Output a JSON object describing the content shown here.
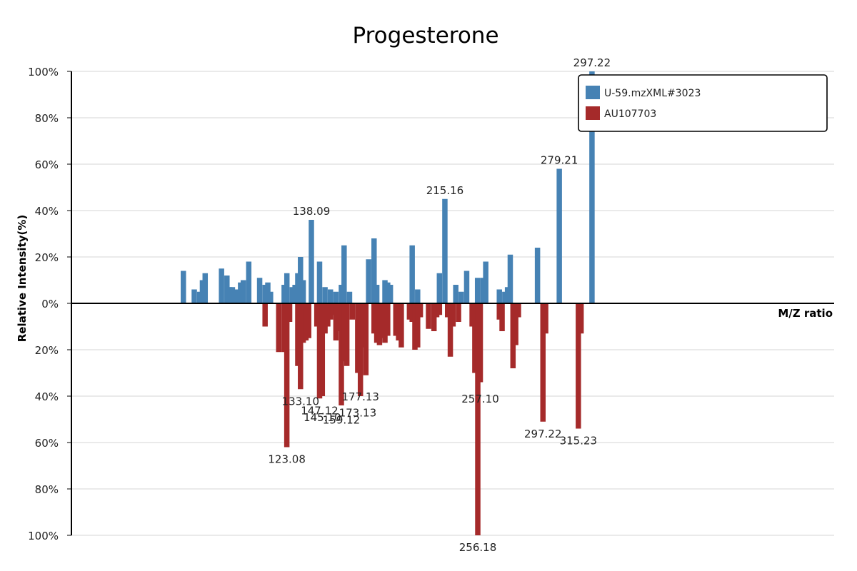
{
  "chart_data": {
    "type": "bar",
    "title": "Progesterone",
    "xlabel": "M/Z ratio",
    "ylabel": "Relative Intensity(%)",
    "y_ticks": [
      "100%",
      "80%",
      "60%",
      "40%",
      "20%",
      "0%",
      "20%",
      "40%",
      "60%",
      "80%",
      "100%"
    ],
    "ylim_top": [
      0,
      100
    ],
    "ylim_bottom": [
      0,
      100
    ],
    "xlim": [
      50,
      330
    ],
    "grid": true,
    "legend_position": "top-right",
    "colors": {
      "top": "#4682b4",
      "bottom": "#a52a2a",
      "axis": "#000000",
      "grid": "#dddddd"
    },
    "series": [
      {
        "name": "U-59.mzXML#3023",
        "color": "#4682b4",
        "direction": "up",
        "points": [
          [
            91.1,
            14
          ],
          [
            95.1,
            6
          ],
          [
            97.1,
            5
          ],
          [
            98.1,
            10
          ],
          [
            99.1,
            13
          ],
          [
            105.1,
            15
          ],
          [
            107.1,
            12
          ],
          [
            108.1,
            7
          ],
          [
            109.1,
            7
          ],
          [
            110.1,
            6
          ],
          [
            111.1,
            6
          ],
          [
            112.1,
            9
          ],
          [
            113.1,
            10
          ],
          [
            115.1,
            18
          ],
          [
            119.1,
            11
          ],
          [
            121.1,
            8
          ],
          [
            122.1,
            9
          ],
          [
            123.1,
            5
          ],
          [
            128.1,
            8
          ],
          [
            129.1,
            13
          ],
          [
            131.1,
            7
          ],
          [
            132.1,
            8
          ],
          [
            133.1,
            13
          ],
          [
            134.1,
            20
          ],
          [
            135.1,
            10
          ],
          [
            138.09,
            36
          ],
          [
            141.1,
            18
          ],
          [
            143.1,
            7
          ],
          [
            145.1,
            6
          ],
          [
            147.1,
            5
          ],
          [
            149.1,
            8
          ],
          [
            150.1,
            25
          ],
          [
            152.1,
            5
          ],
          [
            159.1,
            19
          ],
          [
            161.1,
            28
          ],
          [
            162.1,
            8
          ],
          [
            165.1,
            10
          ],
          [
            166.1,
            9
          ],
          [
            167.1,
            8
          ],
          [
            175.1,
            25
          ],
          [
            177.1,
            6
          ],
          [
            185.1,
            13
          ],
          [
            187.1,
            45
          ],
          [
            191.1,
            8
          ],
          [
            193.1,
            5
          ],
          [
            195.1,
            14
          ],
          [
            199.1,
            11
          ],
          [
            201.1,
            11
          ],
          [
            202.1,
            18
          ],
          [
            207.1,
            6
          ],
          [
            209.1,
            5
          ],
          [
            210.1,
            7
          ],
          [
            211.1,
            21
          ],
          [
            221.1,
            24
          ],
          [
            229.1,
            58
          ],
          [
            241.1,
            100
          ]
        ],
        "labels": [
          {
            "x": 138.09,
            "y": 36,
            "text": "138.09"
          },
          {
            "x": 187.1,
            "y": 45,
            "text": "215.16"
          },
          {
            "x": 229.1,
            "y": 58,
            "text": "279.21"
          },
          {
            "x": 241.1,
            "y": 100,
            "text": "297.22"
          }
        ]
      },
      {
        "name": "AU107703",
        "color": "#a52a2a",
        "direction": "down",
        "points": [
          [
            121.1,
            10
          ],
          [
            126.1,
            21
          ],
          [
            128.1,
            21
          ],
          [
            129.08,
            62
          ],
          [
            130.1,
            8
          ],
          [
            133.1,
            27
          ],
          [
            134.1,
            37
          ],
          [
            135.1,
            17
          ],
          [
            136.1,
            16
          ],
          [
            137.1,
            15
          ],
          [
            140.1,
            10
          ],
          [
            141.1,
            41
          ],
          [
            142.1,
            40
          ],
          [
            143.1,
            13
          ],
          [
            144.1,
            10
          ],
          [
            145.1,
            7
          ],
          [
            146.1,
            5
          ],
          [
            147.1,
            16
          ],
          [
            148.1,
            12
          ],
          [
            149.1,
            44
          ],
          [
            150.1,
            25
          ],
          [
            151.1,
            27
          ],
          [
            153.1,
            7
          ],
          [
            155.1,
            30
          ],
          [
            156.1,
            40
          ],
          [
            157.1,
            19
          ],
          [
            158.1,
            31
          ],
          [
            161.1,
            13
          ],
          [
            162.1,
            17
          ],
          [
            163.1,
            18
          ],
          [
            164.1,
            15
          ],
          [
            165.1,
            17
          ],
          [
            166.1,
            14
          ],
          [
            169.1,
            14
          ],
          [
            170.1,
            16
          ],
          [
            171.1,
            19
          ],
          [
            174.1,
            7
          ],
          [
            175.1,
            8
          ],
          [
            176.1,
            20
          ],
          [
            177.1,
            19
          ],
          [
            178.1,
            6
          ],
          [
            181.1,
            11
          ],
          [
            183.1,
            12
          ],
          [
            184.1,
            6
          ],
          [
            185.1,
            5
          ],
          [
            188.1,
            6
          ],
          [
            189.1,
            23
          ],
          [
            190.1,
            10
          ],
          [
            192.1,
            8
          ],
          [
            197.1,
            10
          ],
          [
            198.1,
            30
          ],
          [
            199.18,
            100
          ],
          [
            200.1,
            34
          ],
          [
            207.1,
            7
          ],
          [
            208.1,
            12
          ],
          [
            212.1,
            28
          ],
          [
            213.1,
            18
          ],
          [
            214.1,
            6
          ],
          [
            223.1,
            51
          ],
          [
            224.1,
            13
          ],
          [
            236.1,
            54
          ],
          [
            237.1,
            13
          ]
        ],
        "labels": [
          {
            "x": 129.08,
            "y": 62,
            "text": "123.08"
          },
          {
            "x": 134.1,
            "y": 37,
            "text": "133.10"
          },
          {
            "x": 141.1,
            "y": 41,
            "text": "147.12"
          },
          {
            "x": 142.1,
            "y": 44,
            "text": "145.10"
          },
          {
            "x": 149.1,
            "y": 45,
            "text": "159.12"
          },
          {
            "x": 156.1,
            "y": 35,
            "text": "177.13"
          },
          {
            "x": 155.1,
            "y": 42,
            "text": "173.13"
          },
          {
            "x": 200.1,
            "y": 36,
            "text": "257.10"
          },
          {
            "x": 199.18,
            "y": 100,
            "text": "256.18"
          },
          {
            "x": 223.1,
            "y": 51,
            "text": "297.22"
          },
          {
            "x": 236.1,
            "y": 54,
            "text": "315.23"
          }
        ]
      }
    ]
  }
}
